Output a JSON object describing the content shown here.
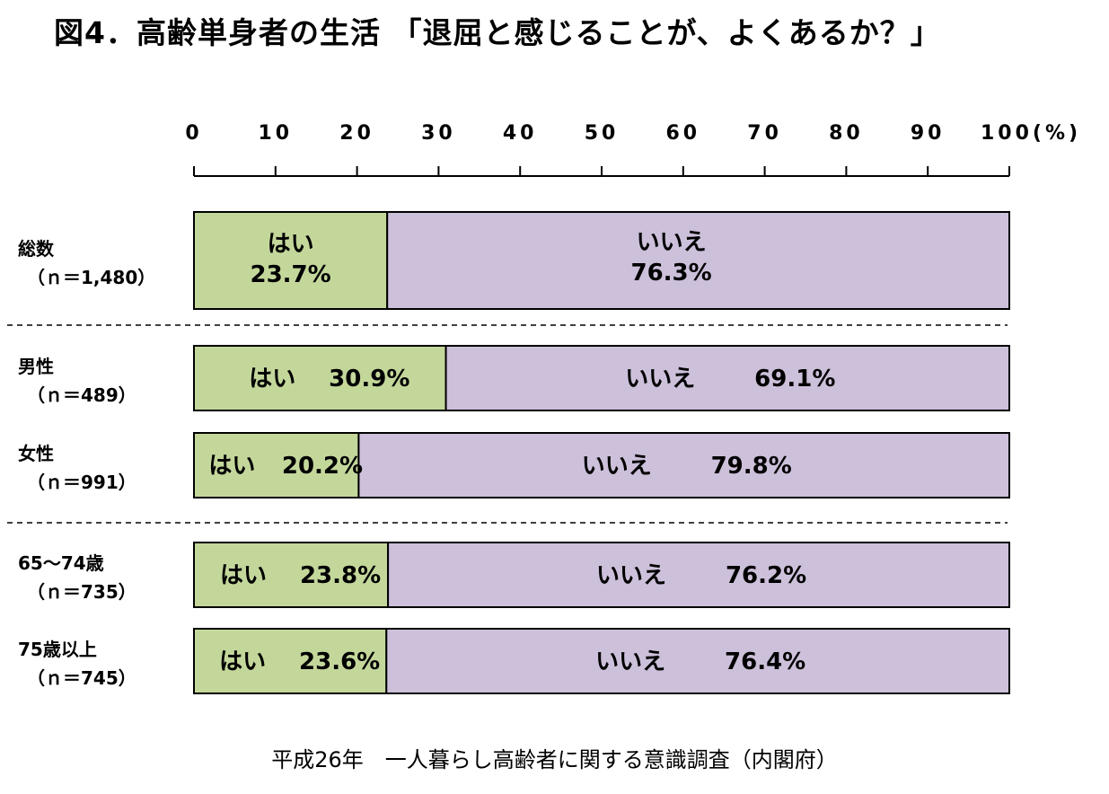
{
  "title": "図4．高齢単身者の生活 「退屈と感じることが、よくあるか？」",
  "source": "平成26年　一人暮らし高齢者に関する意識調査（内閣府）",
  "chart_data": {
    "type": "bar",
    "orientation": "horizontal-stacked-100",
    "axis": {
      "ticks": [
        0,
        10,
        20,
        30,
        40,
        50,
        60,
        70,
        80,
        90,
        100
      ],
      "tick_labels": [
        "0",
        "10",
        "20",
        "30",
        "40",
        "50",
        "60",
        "70",
        "80",
        "90",
        "100(%)"
      ],
      "xlim": [
        0,
        100
      ],
      "position": "top"
    },
    "groups": [
      [
        {
          "label_lines": [
            "総数",
            "（ｎ＝1,480）"
          ],
          "yes": {
            "label": "はい",
            "value": 23.7,
            "text": "23.7%"
          },
          "no": {
            "label": "いいえ",
            "value": 76.3,
            "text": "76.3%"
          },
          "label_layout": "stacked"
        }
      ],
      [
        {
          "label_lines": [
            "男性",
            "（ｎ＝489）"
          ],
          "yes": {
            "label": "はい",
            "value": 30.9,
            "text": "30.9%"
          },
          "no": {
            "label": "いいえ",
            "value": 69.1,
            "text": "69.1%"
          },
          "label_layout": "inline"
        },
        {
          "label_lines": [
            "女性",
            "（ｎ＝991）"
          ],
          "yes": {
            "label": "はい",
            "value": 20.2,
            "text": "20.2%"
          },
          "no": {
            "label": "いいえ",
            "value": 79.8,
            "text": "79.8%"
          },
          "label_layout": "inline"
        }
      ],
      [
        {
          "label_lines": [
            "65～74歳",
            "（ｎ＝735）"
          ],
          "yes": {
            "label": "はい",
            "value": 23.8,
            "text": "23.8%"
          },
          "no": {
            "label": "いいえ",
            "value": 76.2,
            "text": "76.2%"
          },
          "label_layout": "inline"
        },
        {
          "label_lines": [
            "75歳以上",
            "（ｎ＝745）"
          ],
          "yes": {
            "label": "はい",
            "value": 23.6,
            "text": "23.6%"
          },
          "no": {
            "label": "いいえ",
            "value": 76.4,
            "text": "76.4%"
          },
          "label_layout": "inline"
        }
      ]
    ],
    "colors": {
      "yes": "#c4d79b",
      "no": "#ccc0da",
      "border": "#000000"
    }
  }
}
